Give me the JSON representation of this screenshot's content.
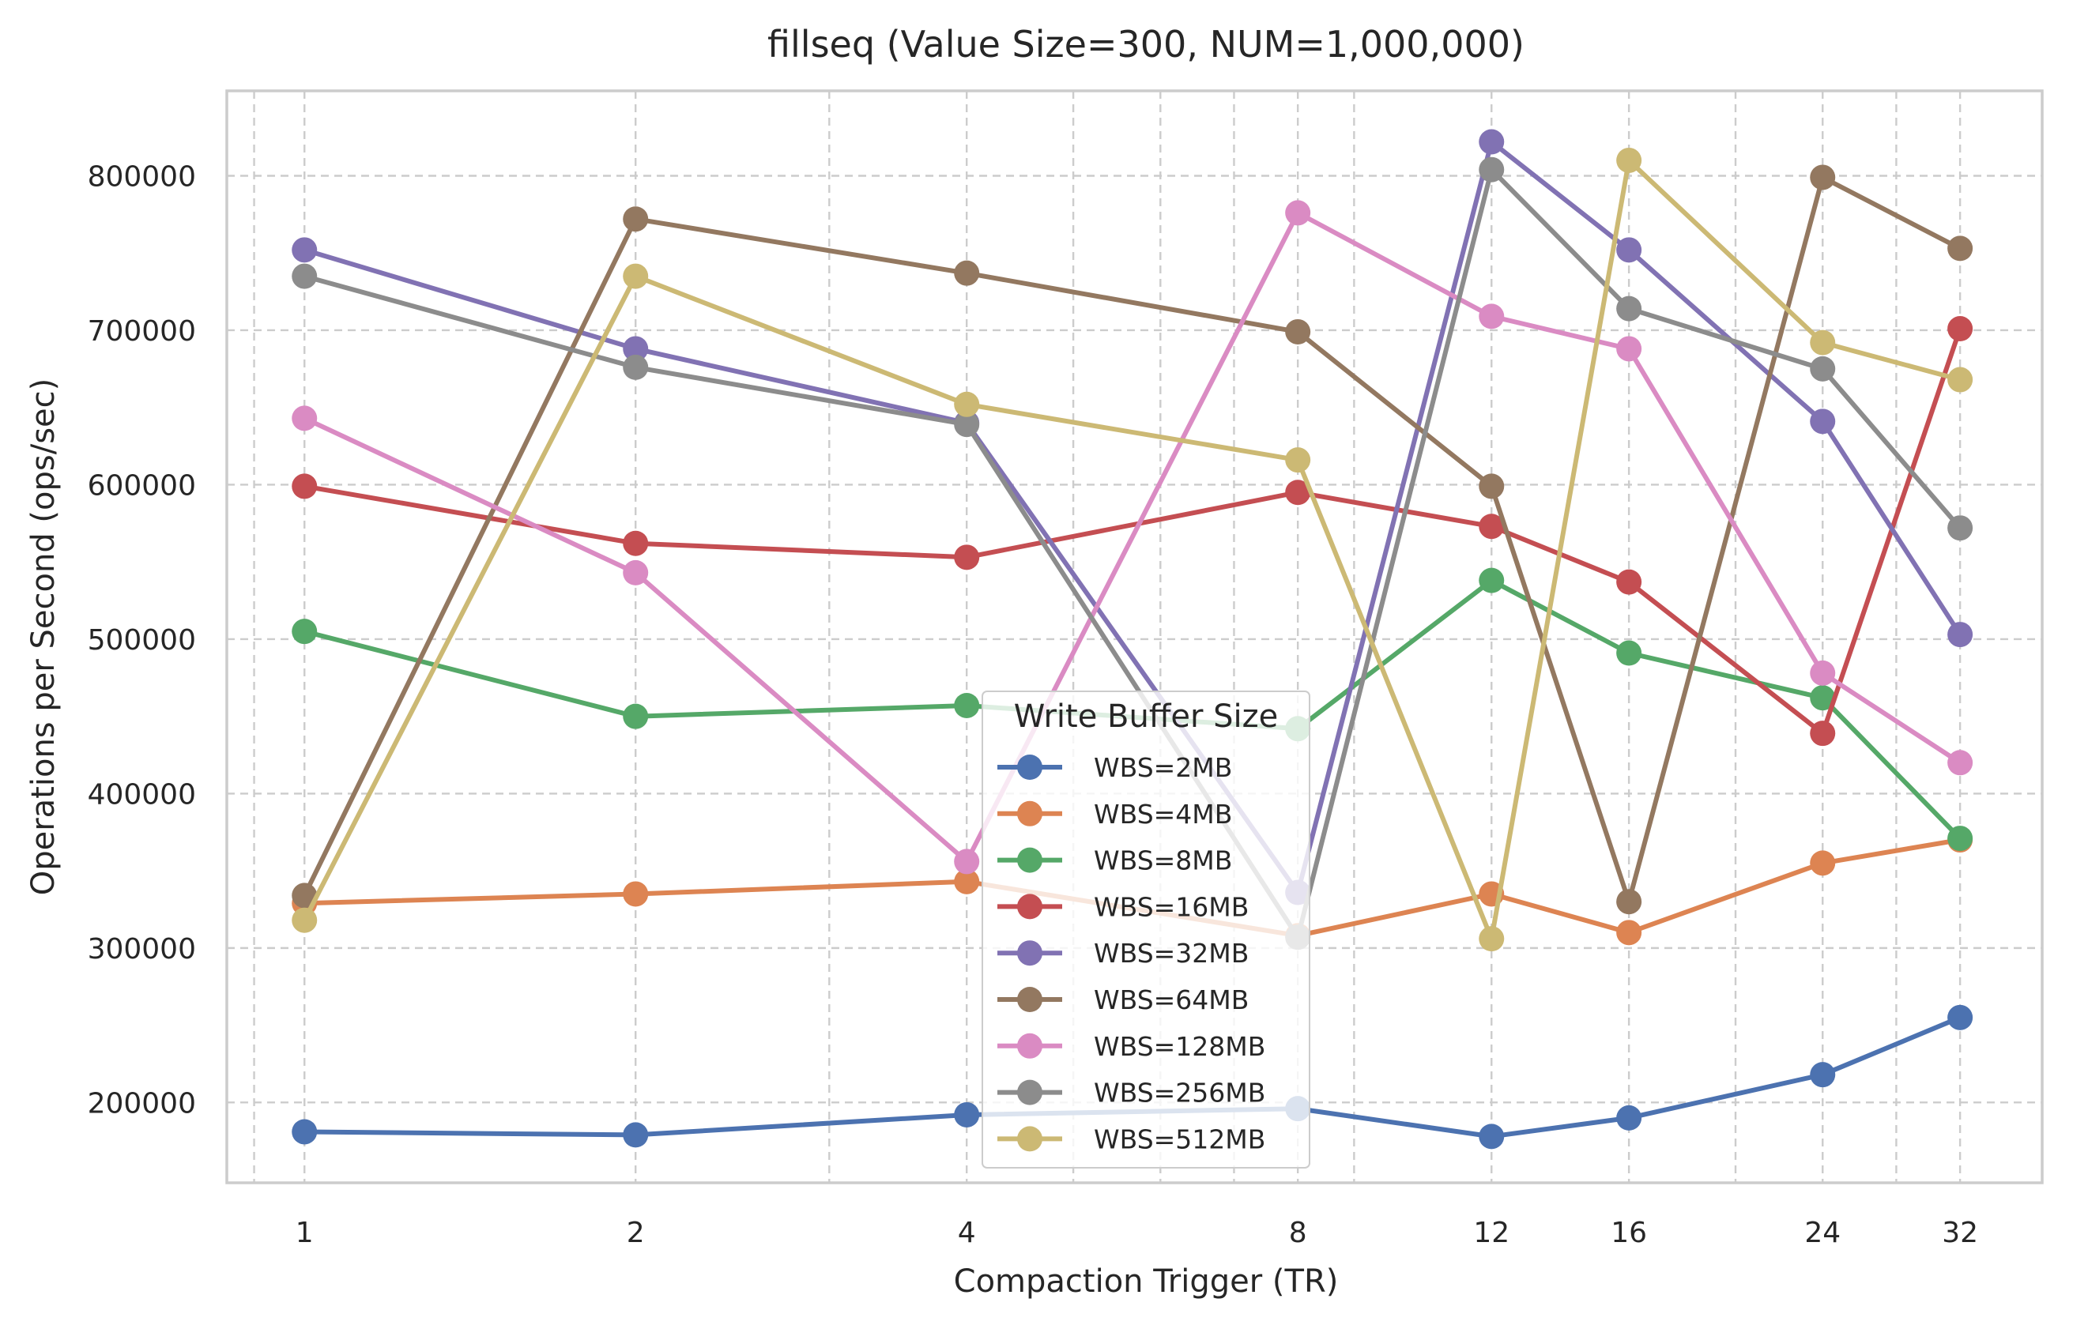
{
  "chart_data": {
    "type": "line",
    "title": "fillseq (Value Size=300, NUM=1,000,000)",
    "xlabel": "Compaction Trigger (TR)",
    "ylabel": "Operations per Second (ops/sec)",
    "x_scale": "log2",
    "x": [
      1,
      2,
      4,
      8,
      12,
      16,
      24,
      32
    ],
    "x_tick_labels": [
      "1",
      "2",
      "4",
      "8",
      "12",
      "16",
      "24",
      "32"
    ],
    "xlim": [
      0.85,
      38
    ],
    "y_ticks": [
      200000,
      300000,
      400000,
      500000,
      600000,
      700000,
      800000
    ],
    "y_tick_labels": [
      "200000",
      "300000",
      "400000",
      "500000",
      "600000",
      "700000",
      "800000"
    ],
    "ylim": [
      148000,
      855000
    ],
    "grid": true,
    "legend": {
      "title": "Write Buffer Size",
      "placement": "lower-center"
    },
    "series": [
      {
        "name": "WBS=2MB",
        "color": "#4c72b0",
        "values": [
          181000,
          179000,
          192000,
          196000,
          178000,
          190000,
          218000,
          255000
        ]
      },
      {
        "name": "WBS=4MB",
        "color": "#dd8452",
        "values": [
          329000,
          335000,
          343000,
          308000,
          335000,
          310000,
          355000,
          370000
        ]
      },
      {
        "name": "WBS=8MB",
        "color": "#55a868",
        "values": [
          505000,
          450000,
          457000,
          442000,
          538000,
          491000,
          462000,
          371000
        ]
      },
      {
        "name": "WBS=16MB",
        "color": "#c44e52",
        "values": [
          599000,
          562000,
          553000,
          595000,
          573000,
          537000,
          439000,
          701000
        ]
      },
      {
        "name": "WBS=32MB",
        "color": "#8172b3",
        "values": [
          752000,
          688000,
          640000,
          336000,
          822000,
          752000,
          641000,
          503000
        ]
      },
      {
        "name": "WBS=64MB",
        "color": "#937860",
        "values": [
          334000,
          772000,
          737000,
          699000,
          599000,
          330000,
          799000,
          753000
        ]
      },
      {
        "name": "WBS=128MB",
        "color": "#da8bc3",
        "values": [
          643000,
          543000,
          356000,
          776000,
          709000,
          688000,
          478000,
          420000
        ]
      },
      {
        "name": "WBS=256MB",
        "color": "#8c8c8c",
        "values": [
          735000,
          676000,
          639000,
          307000,
          804000,
          714000,
          675000,
          572000
        ]
      },
      {
        "name": "WBS=512MB",
        "color": "#ccb974",
        "values": [
          318000,
          735000,
          652000,
          616000,
          306000,
          810000,
          692000,
          668000
        ]
      }
    ]
  }
}
